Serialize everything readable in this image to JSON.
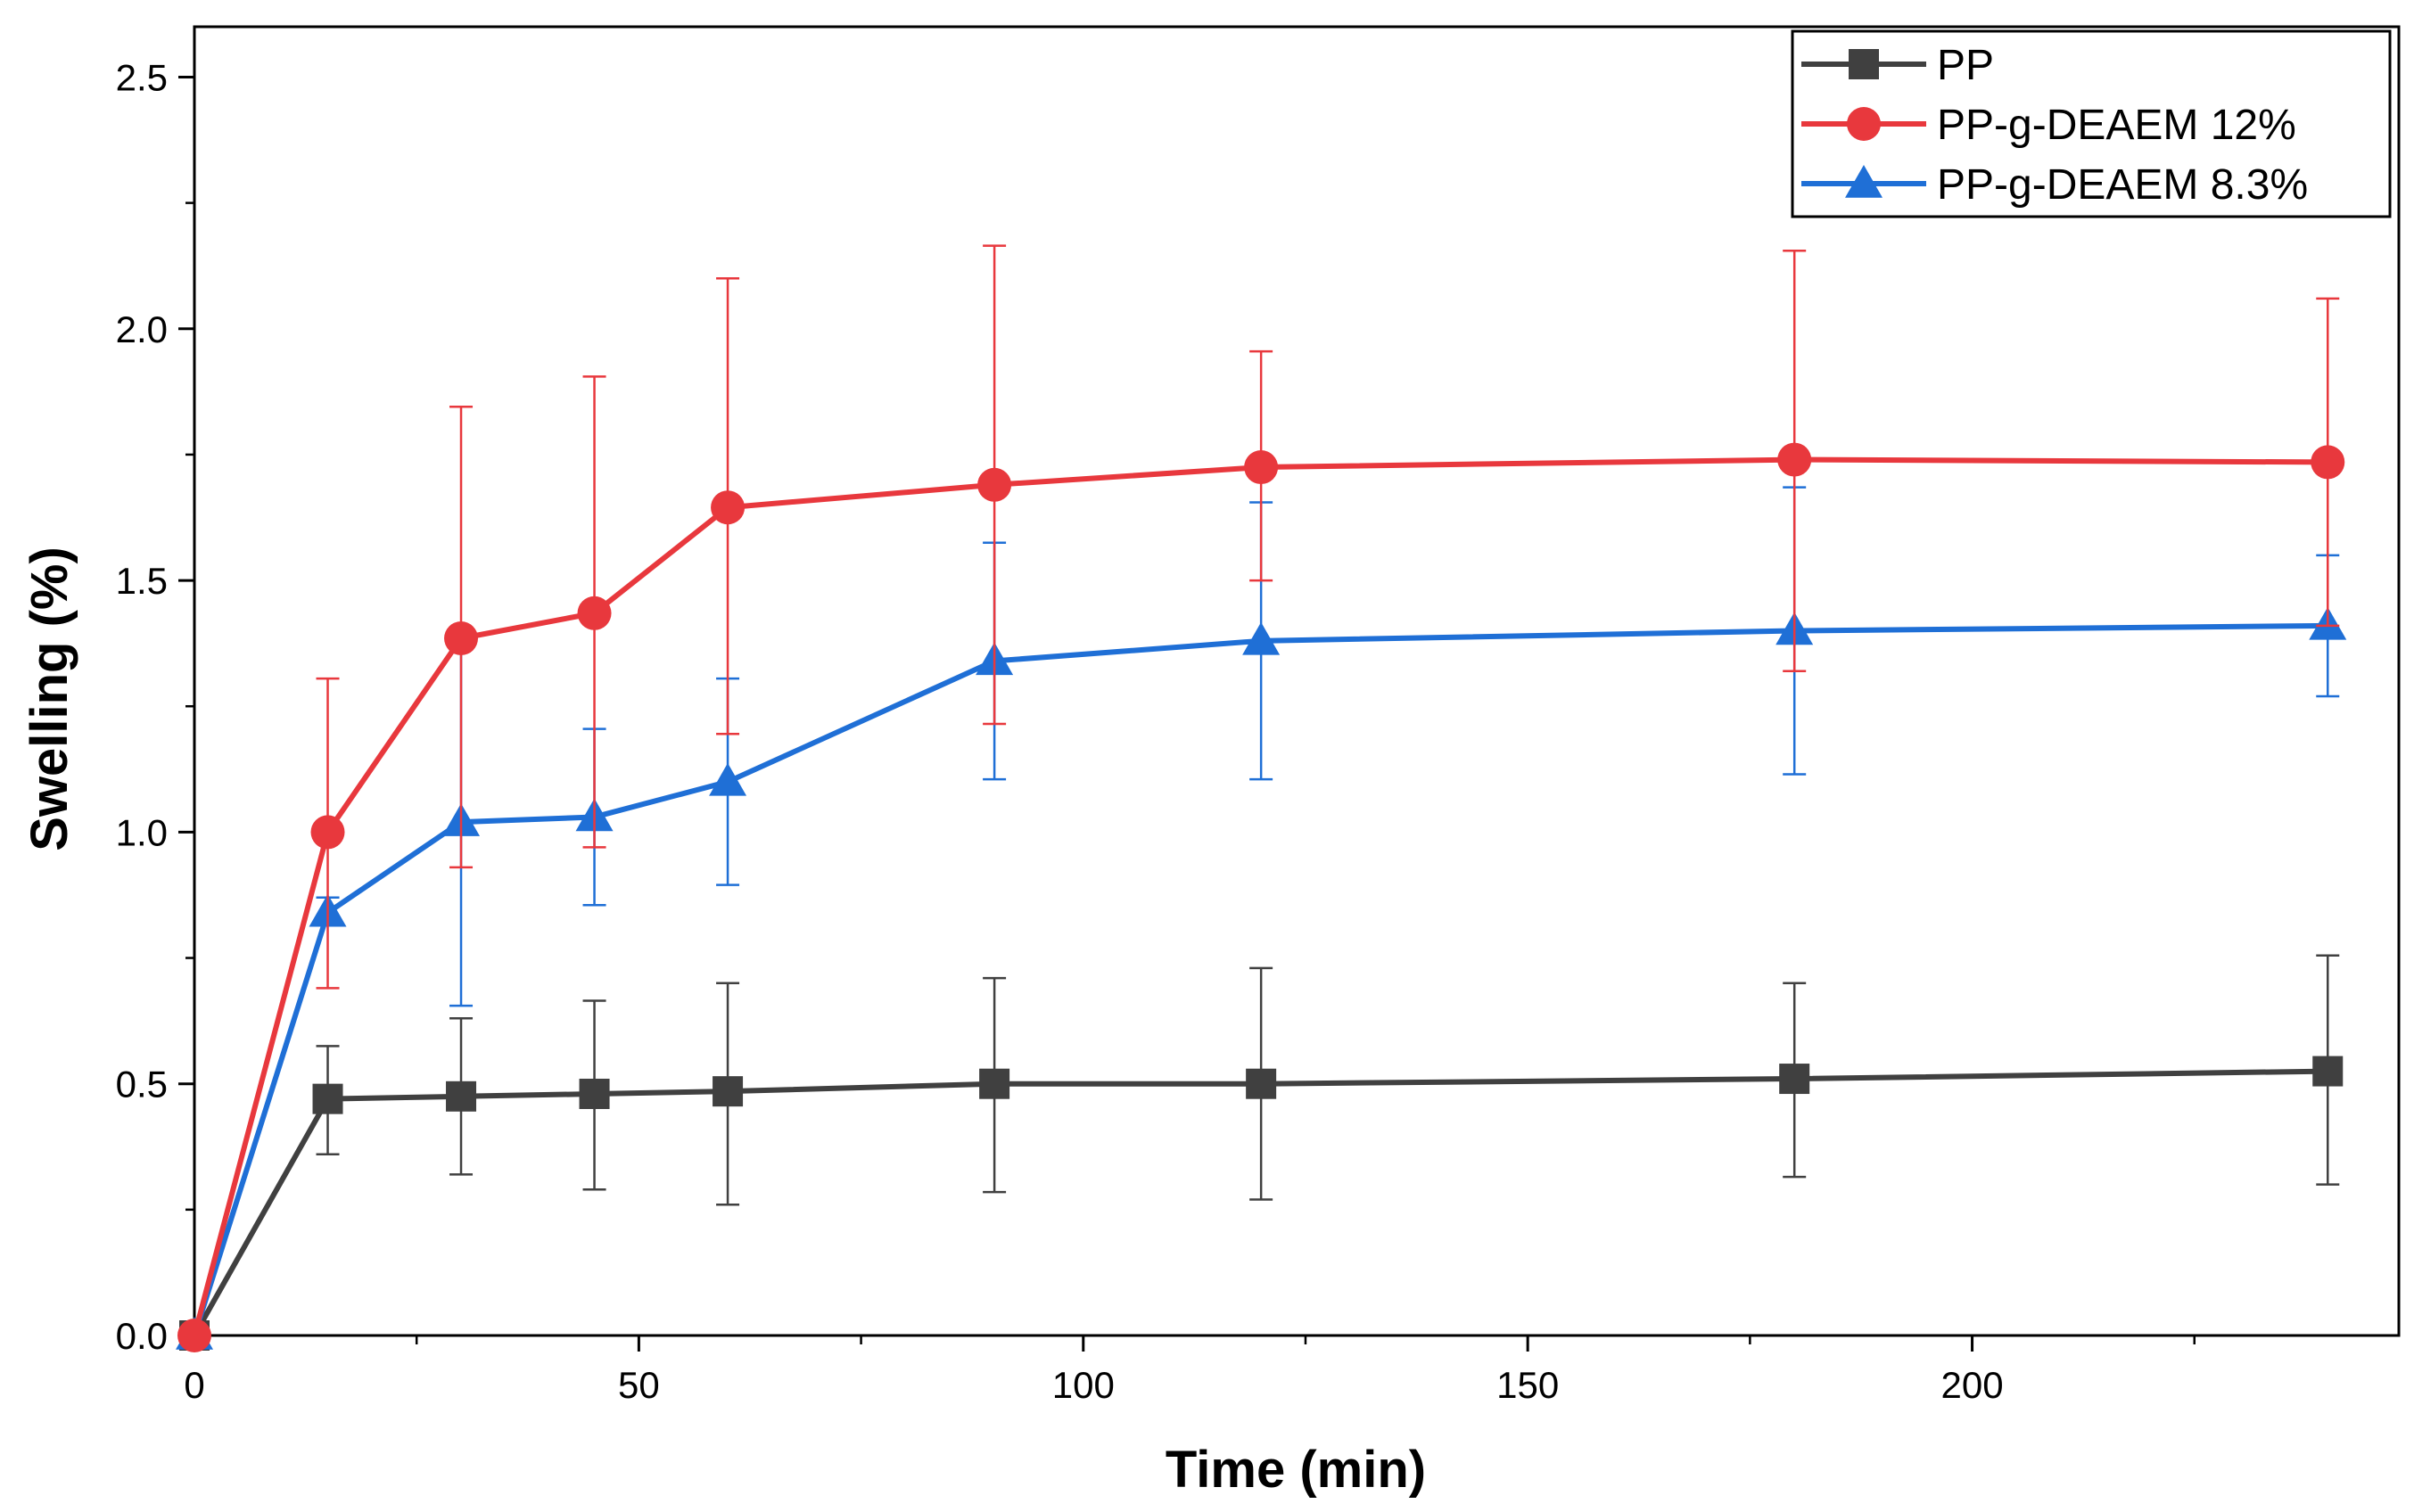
{
  "chart_data": {
    "type": "line",
    "title": "",
    "xlabel": "Time (min)",
    "ylabel": "Swelling (%)",
    "xlim": [
      0,
      248
    ],
    "ylim": [
      0,
      2.6
    ],
    "xticks": [
      0,
      50,
      100,
      150,
      200
    ],
    "xtick_labels": [
      "0",
      "50",
      "100",
      "150",
      "200"
    ],
    "yticks": [
      0.0,
      0.5,
      1.0,
      1.5,
      2.0,
      2.5
    ],
    "ytick_labels": [
      "0.0",
      "0.5",
      "1.0",
      "1.5",
      "2.0",
      "2.5"
    ],
    "x": [
      0,
      15,
      30,
      45,
      60,
      90,
      120,
      180,
      240
    ],
    "grid": false,
    "legend_position": "top-right",
    "series": [
      {
        "name": "PP",
        "color": "#404040",
        "marker": "square",
        "values": [
          0.0,
          0.47,
          0.475,
          0.48,
          0.485,
          0.5,
          0.5,
          0.51,
          0.525
        ],
        "err_low": [
          0.0,
          0.36,
          0.32,
          0.29,
          0.26,
          0.285,
          0.27,
          0.315,
          0.3
        ],
        "err_high": [
          0.0,
          0.575,
          0.63,
          0.665,
          0.7,
          0.71,
          0.73,
          0.7,
          0.755
        ]
      },
      {
        "name": "PP-g-DEAEM 12%",
        "color": "#e8383d",
        "marker": "circle",
        "values": [
          0.0,
          1.0,
          1.385,
          1.435,
          1.645,
          1.69,
          1.725,
          1.74,
          1.735
        ],
        "err_low": [
          0.0,
          0.69,
          0.93,
          0.97,
          1.195,
          1.215,
          1.5,
          1.32,
          1.41
        ],
        "err_high": [
          0.0,
          1.305,
          1.845,
          1.905,
          2.1,
          2.165,
          1.955,
          2.155,
          2.06
        ]
      },
      {
        "name": "PP-g-DEAEM 8.3%",
        "color": "#1f6fd6",
        "marker": "triangle",
        "values": [
          0.0,
          0.84,
          1.02,
          1.03,
          1.1,
          1.34,
          1.38,
          1.4,
          1.41
        ],
        "err_low": [
          0.0,
          0.815,
          0.655,
          0.855,
          0.895,
          1.105,
          1.105,
          1.115,
          1.27
        ],
        "err_high": [
          0.0,
          0.87,
          1.385,
          1.205,
          1.305,
          1.575,
          1.655,
          1.685,
          1.55
        ]
      }
    ]
  }
}
